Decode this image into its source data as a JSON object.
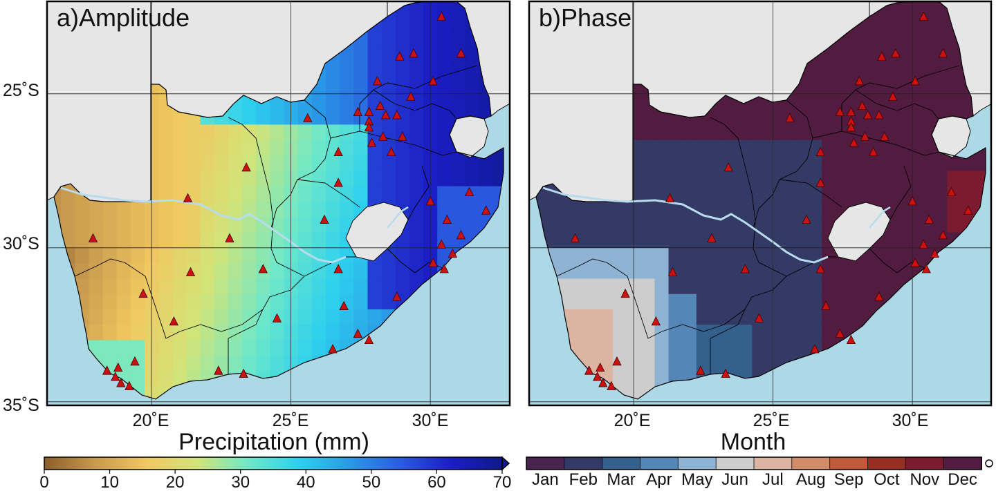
{
  "colors": {
    "ocean": "#add8e6",
    "land": "#e6e6e6",
    "station": "#cc1111",
    "river": "#b8dcee"
  },
  "panels": [
    {
      "title": "a)Amplitude",
      "variable": "amplitude"
    },
    {
      "title": "b)Phase",
      "variable": "phase"
    }
  ],
  "axes": {
    "lat_ticks": [
      {
        "value": -25,
        "label": "25˚S"
      },
      {
        "value": -30,
        "label": "30˚S"
      },
      {
        "value": -35,
        "label": "35˚S"
      }
    ],
    "lon_ticks": [
      {
        "value": 20,
        "label": "20˚E"
      },
      {
        "value": 25,
        "label": "25˚E"
      },
      {
        "value": 30,
        "label": "30˚E"
      }
    ]
  },
  "amplitude_colorbar": {
    "title": "Precipitation (mm)",
    "min": 0,
    "max": 70,
    "tick_labels": [
      "0",
      "10",
      "20",
      "30",
      "40",
      "50",
      "60",
      "70"
    ],
    "stops": [
      "#8b5e2b",
      "#c89a4e",
      "#f0c860",
      "#d2e478",
      "#6fe8c8",
      "#2ed0ee",
      "#2a9ae6",
      "#2a5ce0",
      "#1c1cc4",
      "#0e1a8a"
    ]
  },
  "phase_colorbar": {
    "title": "Month",
    "months": [
      "Jan",
      "Feb",
      "Mar",
      "Apr",
      "May",
      "Jun",
      "Jul",
      "Aug",
      "Sep",
      "Oct",
      "Nov",
      "Dec"
    ],
    "colors": [
      "#4a2350",
      "#343a66",
      "#34608e",
      "#5586b8",
      "#8fb3d2",
      "#cdcdcd",
      "#dcb4a2",
      "#d28c6a",
      "#c05a3a",
      "#962e24",
      "#7c1a30",
      "#521c40"
    ]
  },
  "stations": [
    {
      "lon": 30.4,
      "lat": -22.5
    },
    {
      "lon": 31.1,
      "lon2": 0,
      "lat": -23.7
    },
    {
      "lon": 29.4,
      "lat": -23.7
    },
    {
      "lon": 28.9,
      "lat": -23.8
    },
    {
      "lon": 28.1,
      "lat": -24.6
    },
    {
      "lon": 30.1,
      "lat": -24.6
    },
    {
      "lon": 29.3,
      "lat": -25.1
    },
    {
      "lon": 28.2,
      "lat": -25.4
    },
    {
      "lon": 27.4,
      "lat": -25.6
    },
    {
      "lon": 27.8,
      "lat": -25.6
    },
    {
      "lon": 28.4,
      "lat": -25.7
    },
    {
      "lon": 28.8,
      "lat": -25.7
    },
    {
      "lon": 27.8,
      "lat": -25.9
    },
    {
      "lon": 27.8,
      "lat": -26.1
    },
    {
      "lon": 25.6,
      "lat": -25.8
    },
    {
      "lon": 28.3,
      "lat": -26.4
    },
    {
      "lon": 29.0,
      "lat": -26.4
    },
    {
      "lon": 27.9,
      "lat": -26.6
    },
    {
      "lon": 26.7,
      "lat": -26.9
    },
    {
      "lon": 28.6,
      "lat": -26.9
    },
    {
      "lon": 23.4,
      "lat": -27.4
    },
    {
      "lon": 26.7,
      "lat": -27.9
    },
    {
      "lon": 31.4,
      "lat": -28.2
    },
    {
      "lon": 21.3,
      "lat": -28.4
    },
    {
      "lon": 30.0,
      "lat": -28.5
    },
    {
      "lon": 32.0,
      "lat": -28.8
    },
    {
      "lon": 26.2,
      "lat": -29.1
    },
    {
      "lon": 30.6,
      "lat": -29.1
    },
    {
      "lon": 31.1,
      "lon2": 0,
      "lat": -29.6
    },
    {
      "lon": 30.4,
      "lat": -29.9
    },
    {
      "lon": 22.8,
      "lat": -29.7
    },
    {
      "lon": 17.9,
      "lat": -29.7
    },
    {
      "lon": 30.8,
      "lat": -30.2
    },
    {
      "lon": 30.1,
      "lat": -30.5
    },
    {
      "lon": 30.5,
      "lat": -30.7
    },
    {
      "lon": 26.7,
      "lat": -30.7
    },
    {
      "lon": 24.0,
      "lat": -30.7
    },
    {
      "lon": 21.4,
      "lat": -30.8
    },
    {
      "lon": 19.7,
      "lat": -31.5
    },
    {
      "lon": 28.8,
      "lat": -31.6
    },
    {
      "lon": 26.9,
      "lat": -31.9
    },
    {
      "lon": 24.5,
      "lat": -32.3
    },
    {
      "lon": 20.8,
      "lat": -32.4
    },
    {
      "lon": 27.4,
      "lat": -32.8
    },
    {
      "lon": 27.8,
      "lat": -33.0
    },
    {
      "lon": 26.5,
      "lat": -33.3
    },
    {
      "lon": 19.4,
      "lat": -33.7
    },
    {
      "lon": 18.8,
      "lat": -33.9
    },
    {
      "lon": 18.4,
      "lat": -34.0
    },
    {
      "lon": 22.4,
      "lat": -34.0
    },
    {
      "lon": 23.3,
      "lat": -34.1
    },
    {
      "lon": 18.7,
      "lat": -34.2
    },
    {
      "lon": 18.9,
      "lat": -34.4
    },
    {
      "lon": 19.2,
      "lat": -34.5
    }
  ]
}
